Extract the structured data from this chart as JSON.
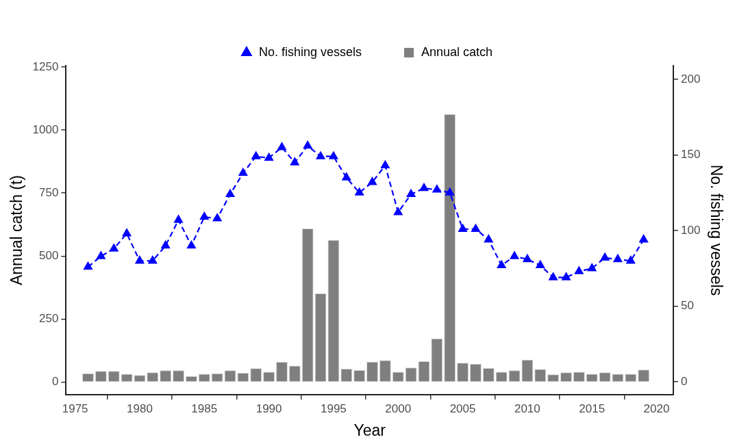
{
  "chart_data": {
    "type": "bar",
    "xlabel": "Year",
    "ylabel": "Annual catch (t)",
    "y2label": "No. fishing vessels",
    "x": [
      1976,
      1977,
      1978,
      1979,
      1980,
      1981,
      1982,
      1983,
      1984,
      1985,
      1986,
      1987,
      1988,
      1989,
      1990,
      1991,
      1992,
      1993,
      1994,
      1995,
      1996,
      1997,
      1998,
      1999,
      2000,
      2001,
      2002,
      2003,
      2004,
      2005,
      2006,
      2007,
      2008,
      2009,
      2010,
      2011,
      2012,
      2013,
      2014,
      2015,
      2016,
      2017,
      2018,
      2019
    ],
    "series": [
      {
        "name": "No. fishing vessels",
        "type": "line",
        "axis": "y2",
        "color": "#0000ff",
        "values": [
          76,
          83,
          88,
          98,
          80,
          80,
          90,
          107,
          90,
          109,
          108,
          124,
          138,
          149,
          148,
          155,
          145,
          156,
          149,
          149,
          135,
          125,
          132,
          143,
          112,
          124,
          128,
          127,
          125,
          101,
          101,
          94,
          77,
          83,
          81,
          77,
          69,
          69,
          73,
          75,
          82,
          81,
          80,
          94
        ]
      },
      {
        "name": "Annual catch",
        "color": "#7f7f7f",
        "values": [
          35,
          44,
          44,
          33,
          28,
          39,
          47,
          47,
          24,
          33,
          35,
          47,
          37,
          55,
          41,
          80,
          65,
          609,
          352,
          564,
          53,
          48,
          81,
          87,
          41,
          58,
          83,
          173,
          1063,
          77,
          73,
          56,
          41,
          47,
          89,
          52,
          31,
          39,
          41,
          33,
          39,
          33,
          33,
          50
        ]
      }
    ],
    "xlim": [
      1974.3,
      2021.3
    ],
    "xticks": [
      1975,
      1980,
      1985,
      1990,
      1995,
      2000,
      2005,
      2010,
      2015,
      2020
    ],
    "ylim": [
      -50,
      1255
    ],
    "yticks": [
      0,
      250,
      500,
      750,
      1000,
      1250
    ],
    "y2lim": [
      -8.5,
      209
    ],
    "y2ticks": [
      0,
      50,
      100,
      150,
      200
    ],
    "grid": false,
    "legend": "top",
    "marker": "triangle",
    "line_style": "dashed"
  }
}
